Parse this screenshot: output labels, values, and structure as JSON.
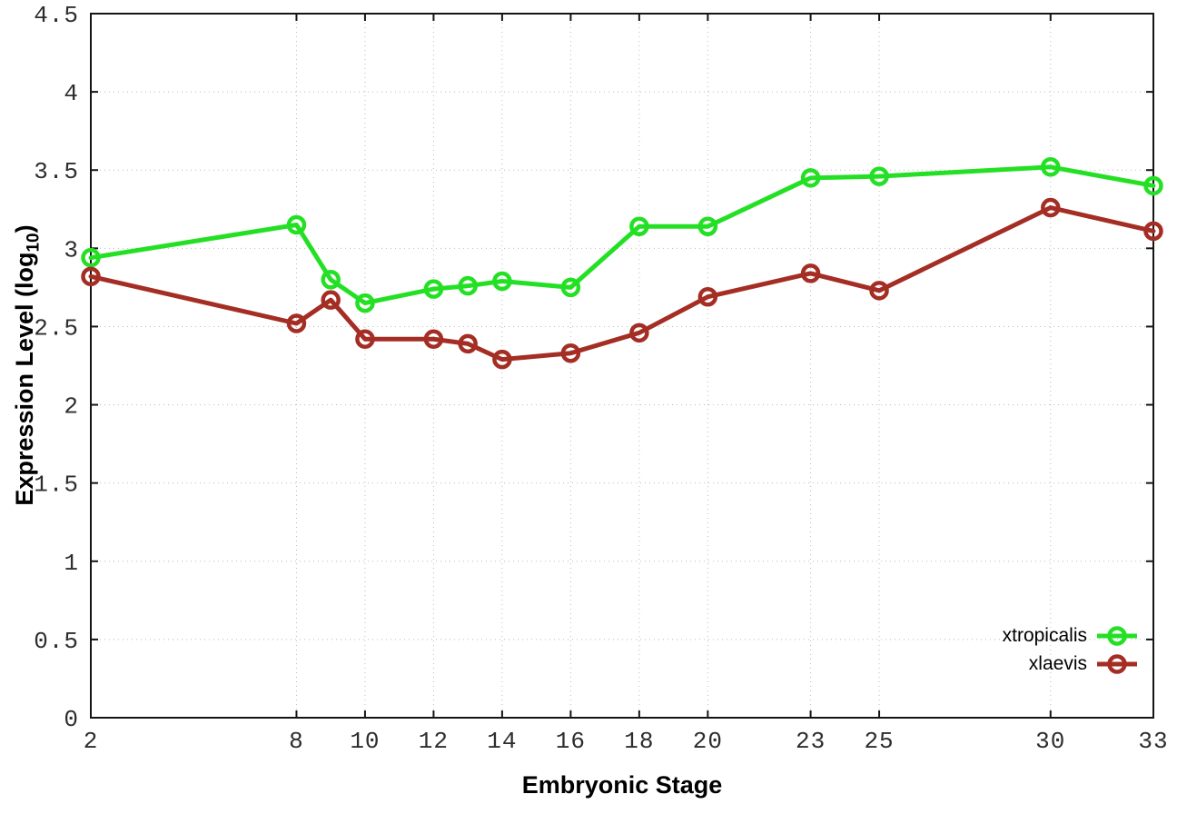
{
  "chart_data": {
    "type": "line",
    "xlabel": "Embryonic Stage",
    "ylabel": {
      "prefix": "Expression Level (log",
      "sub": "10",
      "suffix": ")"
    },
    "xlim": [
      2,
      33
    ],
    "ylim": [
      0,
      4.5
    ],
    "grid": "dotted",
    "legend_position": "bottom-right",
    "xtick_values": [
      2,
      8,
      10,
      12,
      14,
      16,
      18,
      20,
      23,
      25,
      30,
      33
    ],
    "xtick_labels": [
      "2",
      "8",
      "10",
      "12",
      "14",
      "16",
      "18",
      "20",
      "23",
      "25",
      "30",
      "33"
    ],
    "ytick_values": [
      0,
      0.5,
      1,
      1.5,
      2,
      2.5,
      3,
      3.5,
      4,
      4.5
    ],
    "ytick_labels": [
      "0",
      "0.5",
      "1",
      "1.5",
      "2",
      "2.5",
      "3",
      "3.5",
      "4",
      "4.5"
    ],
    "x": [
      2,
      8,
      9,
      10,
      12,
      13,
      14,
      16,
      18,
      20,
      23,
      25,
      30,
      33
    ],
    "series": [
      {
        "name": "xtropicalis",
        "color": "#24e024",
        "marker": "open-circle",
        "values": [
          2.94,
          3.15,
          2.8,
          2.65,
          2.74,
          2.76,
          2.79,
          2.75,
          3.14,
          3.14,
          3.45,
          3.46,
          3.52,
          3.4
        ]
      },
      {
        "name": "xlaevis",
        "color": "#a42d24",
        "marker": "open-circle",
        "values": [
          2.82,
          2.52,
          2.67,
          2.42,
          2.42,
          2.39,
          2.29,
          2.33,
          2.46,
          2.69,
          2.84,
          2.73,
          3.26,
          3.11
        ]
      }
    ]
  },
  "colors": {
    "background": "#ffffff",
    "plot_border": "#151515",
    "grid": "#bbbbbb",
    "tick_text": "#2e2e2e"
  }
}
